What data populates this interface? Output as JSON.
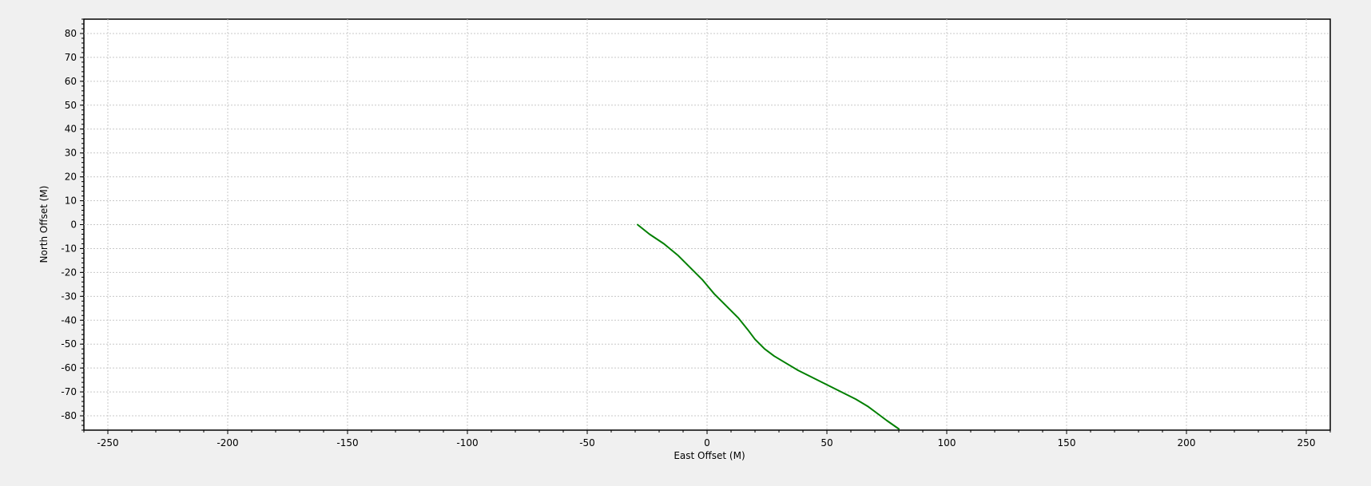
{
  "chart_data": {
    "type": "line",
    "title": "",
    "xlabel": "East Offset (M)",
    "ylabel": "North Offset (M)",
    "xlim": [
      -260,
      260
    ],
    "ylim": [
      -86,
      86
    ],
    "xticks": [
      -250,
      -200,
      -150,
      -100,
      -50,
      0,
      50,
      100,
      150,
      200,
      250
    ],
    "yticks": [
      80,
      70,
      60,
      50,
      40,
      30,
      20,
      10,
      0,
      -10,
      -20,
      -30,
      -40,
      -50,
      -60,
      -70,
      -80
    ],
    "grid": true,
    "series": [
      {
        "color": "#007f00",
        "points": [
          [
            -29,
            0
          ],
          [
            -24,
            -4
          ],
          [
            -18,
            -8
          ],
          [
            -12,
            -13
          ],
          [
            -7,
            -18
          ],
          [
            -2,
            -23
          ],
          [
            3,
            -29
          ],
          [
            8,
            -34
          ],
          [
            13,
            -39
          ],
          [
            17,
            -44
          ],
          [
            20,
            -48
          ],
          [
            24,
            -52
          ],
          [
            28,
            -55
          ],
          [
            33,
            -58
          ],
          [
            38,
            -61
          ],
          [
            44,
            -64
          ],
          [
            50,
            -67
          ],
          [
            56,
            -70
          ],
          [
            62,
            -73
          ],
          [
            67,
            -76
          ],
          [
            71,
            -79
          ],
          [
            75,
            -82
          ],
          [
            80,
            -85.5
          ]
        ]
      }
    ]
  }
}
